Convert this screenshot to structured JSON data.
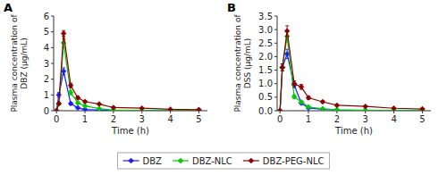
{
  "chart_data": [
    {
      "type": "line",
      "title": "A",
      "x": [
        0,
        0.083,
        0.25,
        0.5,
        0.75,
        1.0,
        1.5,
        2.0,
        3.0,
        4.0,
        5.0
      ],
      "series": [
        {
          "name": "DBZ",
          "color": "#1a1aff",
          "marker": "diamond",
          "values": [
            0,
            1.0,
            2.5,
            0.45,
            0.18,
            0.08,
            0.04,
            0.02,
            0.01,
            0.005,
            0.005
          ],
          "errors": [
            0,
            0.15,
            0.22,
            0.06,
            0.03,
            0.015,
            0.008,
            0.004,
            0.003,
            0.002,
            0.001
          ]
        },
        {
          "name": "DBZ-NLC",
          "color": "#00cc00",
          "marker": "diamond",
          "values": [
            0,
            0.45,
            4.3,
            1.15,
            0.5,
            0.3,
            0.13,
            0.04,
            0.015,
            0.008,
            0.004
          ],
          "errors": [
            0,
            0.06,
            0.28,
            0.14,
            0.07,
            0.04,
            0.018,
            0.007,
            0.004,
            0.002,
            0.001
          ]
        },
        {
          "name": "DBZ-PEG-NLC",
          "color": "#8b0000",
          "marker": "diamond",
          "values": [
            0,
            0.45,
            4.9,
            1.6,
            0.82,
            0.58,
            0.42,
            0.2,
            0.16,
            0.09,
            0.065
          ],
          "errors": [
            0,
            0.07,
            0.18,
            0.14,
            0.09,
            0.07,
            0.05,
            0.022,
            0.018,
            0.011,
            0.007
          ]
        }
      ],
      "x_label": "Time (h)",
      "y_label": "Plasma concentration of\nDBZ (μg/mL)",
      "xlim": [
        -0.1,
        5.3
      ],
      "xticks": [
        0,
        1,
        2,
        3,
        4,
        5
      ],
      "ylim": [
        0,
        6.0
      ],
      "yticks": [
        0,
        1,
        2,
        3,
        4,
        5,
        6
      ],
      "legend": "bottom"
    },
    {
      "type": "line",
      "title": "B",
      "x": [
        0,
        0.083,
        0.25,
        0.5,
        0.75,
        1.0,
        1.5,
        2.0,
        3.0,
        4.0,
        5.0
      ],
      "series": [
        {
          "name": "DBZ",
          "color": "#1a1aff",
          "marker": "diamond",
          "values": [
            0,
            1.6,
            2.1,
            0.95,
            0.28,
            0.1,
            0.055,
            0.025,
            0.015,
            0.008,
            0.007
          ],
          "errors": [
            0,
            0.13,
            0.17,
            0.1,
            0.04,
            0.018,
            0.009,
            0.004,
            0.003,
            0.002,
            0.002
          ]
        },
        {
          "name": "DBZ-NLC",
          "color": "#00cc00",
          "marker": "diamond",
          "values": [
            0,
            1.6,
            2.75,
            0.52,
            0.32,
            0.14,
            0.07,
            0.04,
            0.015,
            0.008,
            0.006
          ],
          "errors": [
            0,
            0.11,
            0.21,
            0.07,
            0.04,
            0.02,
            0.01,
            0.005,
            0.003,
            0.002,
            0.001
          ]
        },
        {
          "name": "DBZ-PEG-NLC",
          "color": "#8b0000",
          "marker": "diamond",
          "values": [
            0,
            1.6,
            2.95,
            1.0,
            0.88,
            0.48,
            0.33,
            0.2,
            0.16,
            0.09,
            0.065
          ],
          "errors": [
            0,
            0.13,
            0.19,
            0.1,
            0.09,
            0.055,
            0.038,
            0.022,
            0.018,
            0.011,
            0.007
          ]
        }
      ],
      "x_label": "Time (h)",
      "y_label": "Plasma concentration of\nDSS (μg/mL)",
      "xlim": [
        -0.1,
        5.3
      ],
      "xticks": [
        0,
        1,
        2,
        3,
        4,
        5
      ],
      "ylim": [
        0,
        3.5
      ],
      "yticks": [
        {
          "value": 0,
          "label": "0.0"
        },
        0.5,
        {
          "value": 1,
          "label": "1.0"
        },
        1.5,
        {
          "value": 2,
          "label": "2.0"
        },
        2.5,
        {
          "value": 3,
          "label": "3.0"
        },
        3.5
      ]
    }
  ]
}
